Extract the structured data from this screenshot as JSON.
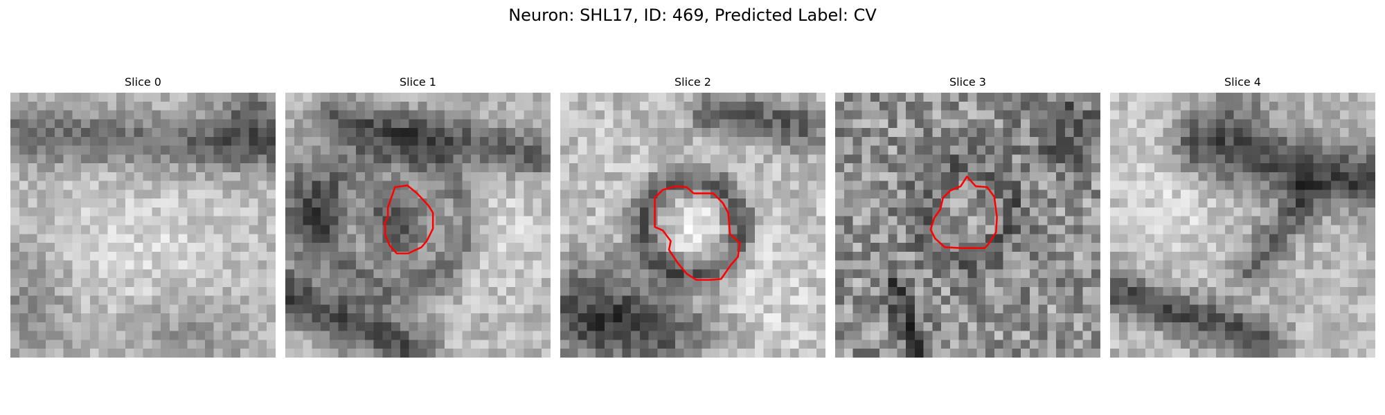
{
  "figure": {
    "title": "Neuron: SHL17, ID: 469, Predicted Label: CV"
  },
  "panels": [
    {
      "title": "Slice 0",
      "has_contour": false
    },
    {
      "title": "Slice 1",
      "has_contour": true
    },
    {
      "title": "Slice 2",
      "has_contour": true
    },
    {
      "title": "Slice 3",
      "has_contour": true
    },
    {
      "title": "Slice 4",
      "has_contour": false
    }
  ],
  "colormap": "gray",
  "contour_color": "#ff0000"
}
